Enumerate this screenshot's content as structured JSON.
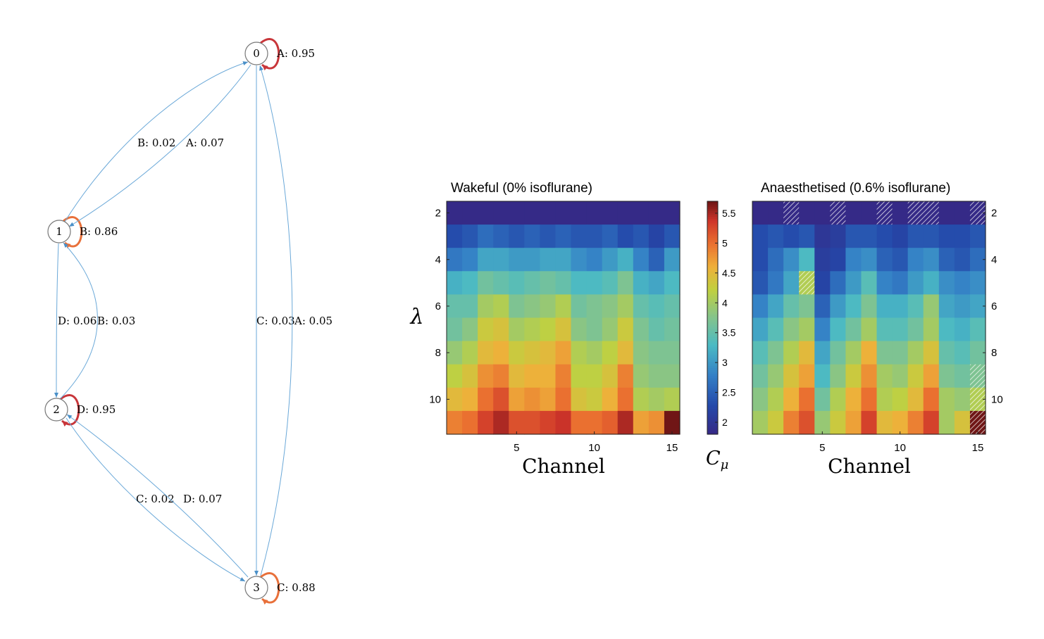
{
  "chart_data": [
    {
      "type": "graph",
      "title": "",
      "nodes": [
        {
          "id": "0",
          "label": "0"
        },
        {
          "id": "1",
          "label": "1"
        },
        {
          "id": "2",
          "label": "2"
        },
        {
          "id": "3",
          "label": "3"
        }
      ],
      "edges": [
        {
          "from": "0",
          "to": "0",
          "label": "A: 0.95",
          "color": "#c8363a"
        },
        {
          "from": "1",
          "to": "1",
          "label": "B: 0.86",
          "color": "#e8703a"
        },
        {
          "from": "2",
          "to": "2",
          "label": "D: 0.95",
          "color": "#c8363a"
        },
        {
          "from": "3",
          "to": "3",
          "label": "C: 0.88",
          "color": "#e8703a"
        },
        {
          "from": "1",
          "to": "0",
          "label": "B: 0.02",
          "color": "#6aa8d8"
        },
        {
          "from": "0",
          "to": "1",
          "label": "A: 0.07",
          "color": "#6aa8d8"
        },
        {
          "from": "1",
          "to": "2",
          "label": "D: 0.06",
          "color": "#6aa8d8"
        },
        {
          "from": "2",
          "to": "1",
          "label": "B: 0.03",
          "color": "#6aa8d8"
        },
        {
          "from": "0",
          "to": "3",
          "label": "C: 0.03",
          "color": "#6aa8d8"
        },
        {
          "from": "3",
          "to": "0",
          "label": "A: 0.05",
          "color": "#6aa8d8"
        },
        {
          "from": "2",
          "to": "3",
          "label": "C: 0.02",
          "color": "#6aa8d8"
        },
        {
          "from": "3",
          "to": "2",
          "label": "D: 0.07",
          "color": "#6aa8d8"
        }
      ]
    },
    {
      "type": "heatmap",
      "title": "Wakeful (0% isoflurane)",
      "xlabel": "Channel",
      "ylabel": "λ",
      "x_range": [
        1,
        15
      ],
      "y_range": [
        2,
        11
      ],
      "x_ticks": [
        "5",
        "10",
        "15"
      ],
      "y_ticks": [
        "2",
        "4",
        "6",
        "8",
        "10"
      ],
      "values": [
        [
          1.7,
          1.7,
          1.8,
          1.8,
          1.8,
          1.6,
          1.8,
          1.8,
          1.8,
          1.8,
          1.8,
          1.8,
          1.8,
          1.7,
          1.8
        ],
        [
          2.3,
          2.4,
          2.6,
          2.5,
          2.4,
          2.5,
          2.4,
          2.5,
          2.4,
          2.4,
          2.5,
          2.3,
          2.4,
          2.2,
          2.4
        ],
        [
          2.7,
          2.8,
          3.1,
          3.1,
          3.0,
          3.0,
          3.1,
          3.1,
          2.9,
          2.8,
          3.0,
          3.2,
          2.8,
          2.5,
          3.0
        ],
        [
          3.2,
          3.3,
          3.6,
          3.5,
          3.4,
          3.5,
          3.6,
          3.5,
          3.3,
          3.3,
          3.4,
          3.7,
          3.2,
          3.1,
          3.3
        ],
        [
          3.5,
          3.5,
          4.0,
          4.1,
          3.7,
          3.8,
          3.9,
          4.1,
          3.6,
          3.7,
          3.8,
          4.0,
          3.5,
          3.4,
          3.5
        ],
        [
          3.6,
          3.8,
          4.3,
          4.4,
          4.0,
          4.1,
          4.2,
          4.4,
          3.8,
          3.7,
          3.9,
          4.3,
          3.7,
          3.5,
          3.6
        ],
        [
          3.9,
          4.1,
          4.5,
          4.6,
          4.3,
          4.4,
          4.5,
          4.7,
          4.1,
          4.0,
          4.2,
          4.5,
          3.8,
          3.7,
          3.7
        ],
        [
          4.2,
          4.4,
          4.8,
          4.9,
          4.5,
          4.6,
          4.6,
          4.9,
          4.2,
          4.2,
          4.4,
          4.9,
          3.9,
          3.8,
          3.8
        ],
        [
          4.5,
          4.6,
          5.0,
          5.2,
          4.7,
          4.8,
          4.7,
          5.0,
          4.4,
          4.3,
          4.6,
          5.0,
          4.1,
          4.0,
          4.1
        ],
        [
          4.9,
          5.0,
          5.3,
          5.5,
          5.2,
          5.2,
          5.3,
          5.4,
          5.0,
          5.0,
          5.1,
          5.5,
          4.7,
          4.8,
          5.7
        ]
      ]
    },
    {
      "type": "colorbar",
      "label": "C_μ",
      "range": [
        1.8,
        5.7
      ],
      "ticks": [
        "2",
        "2.5",
        "3",
        "3.5",
        "4",
        "4.5",
        "5",
        "5.5"
      ]
    },
    {
      "type": "heatmap",
      "title": "Anaesthetised (0.6% isoflurane)",
      "xlabel": "Channel",
      "ylabel": "λ",
      "x_range": [
        1,
        15
      ],
      "y_range": [
        2,
        11
      ],
      "x_ticks": [
        "5",
        "10",
        "15"
      ],
      "y_ticks": [
        "2",
        "4",
        "6",
        "8",
        "10"
      ],
      "values": [
        [
          1.7,
          1.7,
          1.8,
          1.8,
          1.7,
          1.8,
          1.7,
          1.7,
          1.8,
          1.8,
          1.8,
          1.8,
          1.7,
          1.7,
          1.8
        ],
        [
          2.3,
          2.4,
          2.3,
          2.4,
          2.0,
          2.1,
          2.4,
          2.4,
          2.3,
          2.2,
          2.4,
          2.4,
          2.3,
          2.3,
          2.4
        ],
        [
          2.3,
          2.6,
          2.9,
          3.3,
          2.1,
          2.2,
          2.8,
          2.9,
          2.5,
          2.4,
          2.8,
          2.9,
          2.5,
          2.4,
          2.6
        ],
        [
          2.4,
          2.7,
          3.1,
          4.1,
          2.2,
          2.6,
          3.0,
          3.4,
          2.8,
          2.7,
          3.0,
          3.2,
          2.9,
          2.8,
          2.9
        ],
        [
          2.8,
          3.1,
          3.5,
          3.7,
          2.5,
          3.0,
          3.3,
          3.7,
          3.2,
          3.2,
          3.4,
          3.9,
          3.1,
          3.0,
          3.1
        ],
        [
          3.1,
          3.4,
          3.8,
          4.0,
          2.8,
          3.3,
          3.6,
          4.0,
          3.4,
          3.4,
          3.6,
          4.0,
          3.3,
          3.2,
          3.4
        ],
        [
          3.4,
          3.7,
          4.1,
          4.5,
          3.1,
          3.6,
          4.0,
          4.6,
          3.7,
          3.7,
          4.0,
          4.4,
          3.5,
          3.4,
          3.6
        ],
        [
          3.6,
          3.9,
          4.4,
          4.7,
          3.3,
          3.8,
          4.3,
          4.8,
          4.0,
          3.9,
          4.3,
          4.7,
          3.7,
          3.6,
          3.7
        ],
        [
          3.8,
          4.1,
          4.6,
          5.0,
          3.6,
          4.1,
          4.6,
          5.0,
          4.1,
          4.2,
          4.5,
          5.0,
          4.0,
          3.9,
          4.1
        ],
        [
          4.0,
          4.3,
          4.9,
          5.2,
          3.9,
          4.3,
          4.7,
          5.3,
          4.5,
          4.6,
          4.9,
          5.3,
          4.0,
          4.4,
          5.7
        ]
      ],
      "hatched_cells": [
        {
          "row": 0,
          "col": 2
        },
        {
          "row": 0,
          "col": 5
        },
        {
          "row": 0,
          "col": 8
        },
        {
          "row": 0,
          "col": 10
        },
        {
          "row": 0,
          "col": 11
        },
        {
          "row": 0,
          "col": 14
        },
        {
          "row": 3,
          "col": 3
        },
        {
          "row": 7,
          "col": 14
        },
        {
          "row": 8,
          "col": 14
        },
        {
          "row": 9,
          "col": 14
        }
      ]
    }
  ]
}
